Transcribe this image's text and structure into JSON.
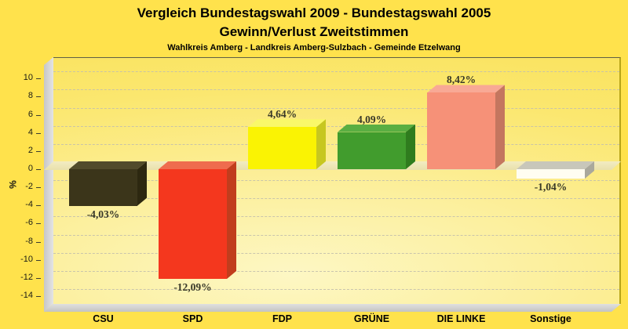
{
  "title": {
    "line1": "Vergleich Bundestagswahl 2009 - Bundestagswahl 2005",
    "line2": "Gewinn/Verlust Zweitstimmen",
    "subtitle": "Wahlkreis Amberg - Landkreis Amberg-Sulzbach - Gemeinde Etzelwang"
  },
  "chart_data": {
    "type": "bar",
    "style": "3d-column",
    "title": "Vergleich Bundestagswahl 2009 - Bundestagswahl 2005 Gewinn/Verlust Zweitstimmen",
    "subtitle": "Wahlkreis Amberg - Landkreis Amberg-Sulzbach - Gemeinde Etzelwang",
    "categories": [
      "CSU",
      "SPD",
      "FDP",
      "GRÜNE",
      "DIE LINKE",
      "Sonstige"
    ],
    "values": [
      -4.03,
      -12.09,
      4.64,
      4.09,
      8.42,
      -1.04
    ],
    "value_labels": [
      "-4,03%",
      "-12,09%",
      "4,64%",
      "4,09%",
      "8,42%",
      "-1,04%"
    ],
    "xlabel": "",
    "ylabel": "%",
    "yticks": [
      10,
      8,
      6,
      4,
      2,
      0,
      -2,
      -4,
      -6,
      -8,
      -10,
      -12,
      -14
    ],
    "ylim": [
      -15.5,
      11.5
    ],
    "grid": "horizontal-dashed",
    "legend": "none",
    "bar_colors": [
      {
        "front": "#3B351A",
        "top": "#514B2B",
        "side": "#2D2810"
      },
      {
        "front": "#F4371E",
        "top": "#EF6C4E",
        "side": "#C13D1D"
      },
      {
        "front": "#FAF303",
        "top": "#F9F869",
        "side": "#C7C720"
      },
      {
        "front": "#419C2D",
        "top": "#5AAE42",
        "side": "#2F7C1E"
      },
      {
        "front": "#F69178",
        "top": "#F8A995",
        "side": "#C4765F"
      },
      {
        "front": "#FFFDF1",
        "top": "#C8C7BA",
        "side": "#A9A89C"
      }
    ],
    "background_color": "#FFE24C",
    "plot_background": "pale-yellow-gradient",
    "zero_plane_color": "#EFE8B6"
  }
}
